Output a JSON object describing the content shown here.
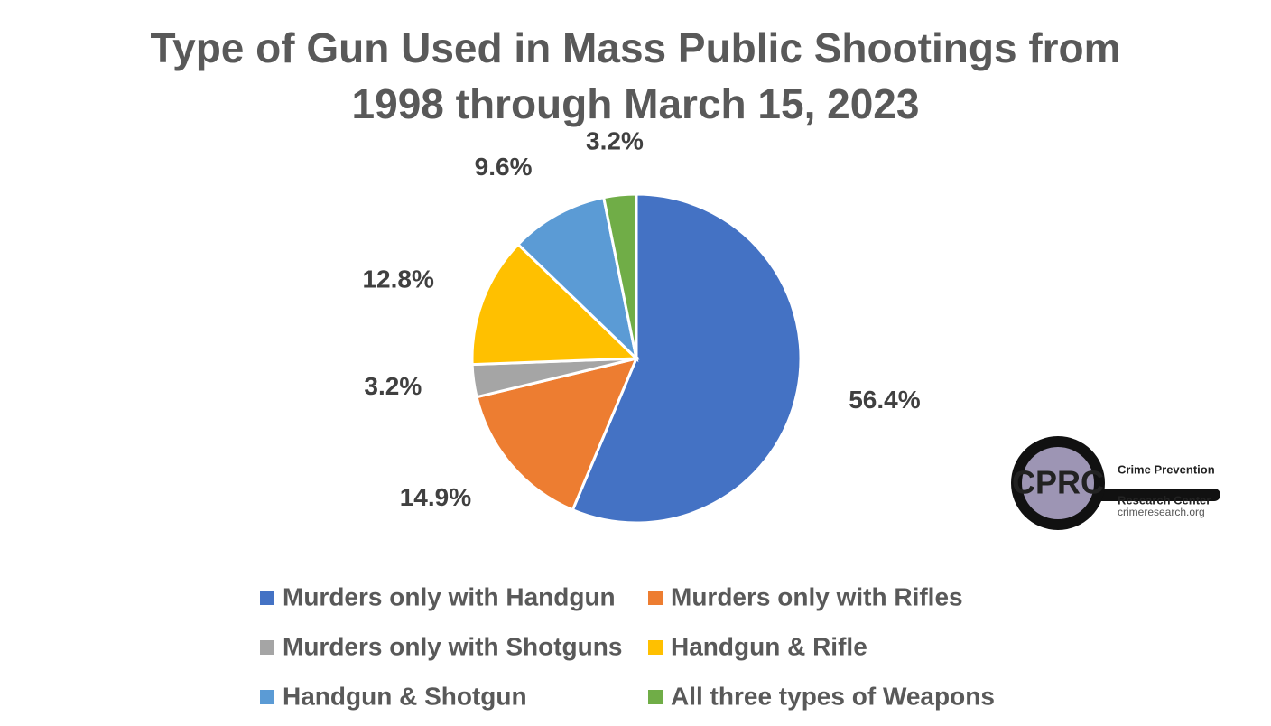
{
  "chart_data": {
    "type": "pie",
    "title": "Type of Gun Used in Mass Public Shootings from 1998 through March 15, 2023",
    "categories": [
      "Murders only with Handgun",
      "Murders only with Rifles",
      "Murders only with Shotguns",
      "Handgun & Rifle",
      "Handgun & Shotgun",
      "All three types of Weapons"
    ],
    "values": [
      56.4,
      14.9,
      3.2,
      12.8,
      9.6,
      3.2
    ],
    "value_labels": [
      "56.4%",
      "14.9%",
      "3.2%",
      "12.8%",
      "9.6%",
      "3.2%"
    ],
    "colors": [
      "#4472c4",
      "#ed7d31",
      "#a5a5a5",
      "#ffc000",
      "#5b9bd5",
      "#70ad47"
    ],
    "legend": "bottom"
  },
  "logo": {
    "mark": "CPRC",
    "line1": "Crime Prevention",
    "line2": "Research Center",
    "url": "crimeresearch.org"
  }
}
